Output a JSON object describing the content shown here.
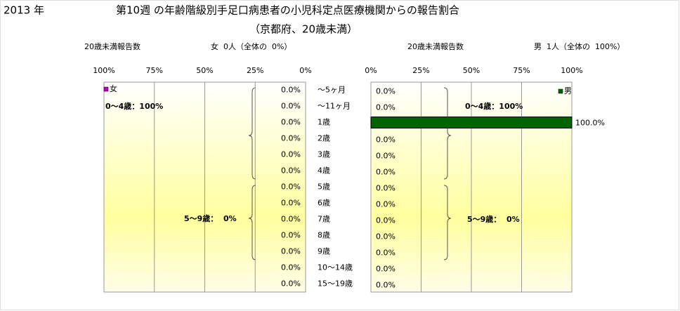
{
  "header": {
    "year": "2013 年",
    "title": "第10週 の年齢階級別手足口病患者の小児科定点医療機関からの報告割合",
    "subtitle": "（京都府、20歳未満）"
  },
  "chart_data": [
    {
      "type": "bar",
      "orientation": "horizontal",
      "x_reversed": true,
      "count_label": "20歳未満報告数",
      "count_summary": "女  0人（全体の  0%）",
      "categories": [
        "～5ヶ月",
        "～11ヶ月",
        "1歳",
        "2歳",
        "3歳",
        "4歳",
        "5歳",
        "6歳",
        "7歳",
        "8歳",
        "9歳",
        "10～14歳",
        "15～19歳"
      ],
      "series": [
        {
          "name": "女",
          "color": "#c000c0",
          "values": [
            0,
            0,
            0,
            0,
            0,
            0,
            0,
            0,
            0,
            0,
            0,
            0,
            0
          ],
          "value_labels": [
            "0.0%",
            "0.0%",
            "0.0%",
            "0.0%",
            "0.0%",
            "0.0%",
            "0.0%",
            "0.0%",
            "0.0%",
            "0.0%",
            "0.0%",
            "0.0%",
            "0.0%"
          ]
        }
      ],
      "xlim": [
        0,
        100
      ],
      "xticks": [
        {
          "value": 0,
          "label": "0%"
        },
        {
          "value": 25,
          "label": "25%"
        },
        {
          "value": 50,
          "label": "50%"
        },
        {
          "value": 75,
          "label": "75%"
        },
        {
          "value": 100,
          "label": "100%"
        }
      ],
      "grid": true,
      "annotations": [
        "0～4歳：100%",
        "5～9歳：  0%"
      ]
    },
    {
      "type": "bar",
      "orientation": "horizontal",
      "x_reversed": false,
      "count_label": "20歳未満報告数",
      "count_summary": "男  1人（全体の  100%）",
      "series": [
        {
          "name": "男",
          "color": "#006400",
          "values": [
            0,
            0,
            100,
            0,
            0,
            0,
            0,
            0,
            0,
            0,
            0,
            0,
            0
          ],
          "value_labels": [
            "0.0%",
            "0.0%",
            "100.0%",
            "0.0%",
            "0.0%",
            "0.0%",
            "0.0%",
            "0.0%",
            "0.0%",
            "0.0%",
            "0.0%",
            "0.0%",
            "0.0%"
          ]
        }
      ],
      "xlim": [
        0,
        100
      ],
      "xticks": [
        {
          "value": 0,
          "label": "0%"
        },
        {
          "value": 25,
          "label": "25%"
        },
        {
          "value": 50,
          "label": "50%"
        },
        {
          "value": 75,
          "label": "75%"
        },
        {
          "value": 100,
          "label": "100%"
        }
      ],
      "grid": true,
      "annotations": [
        "0～4歳：100%",
        "5～9歳：  0%"
      ]
    }
  ]
}
